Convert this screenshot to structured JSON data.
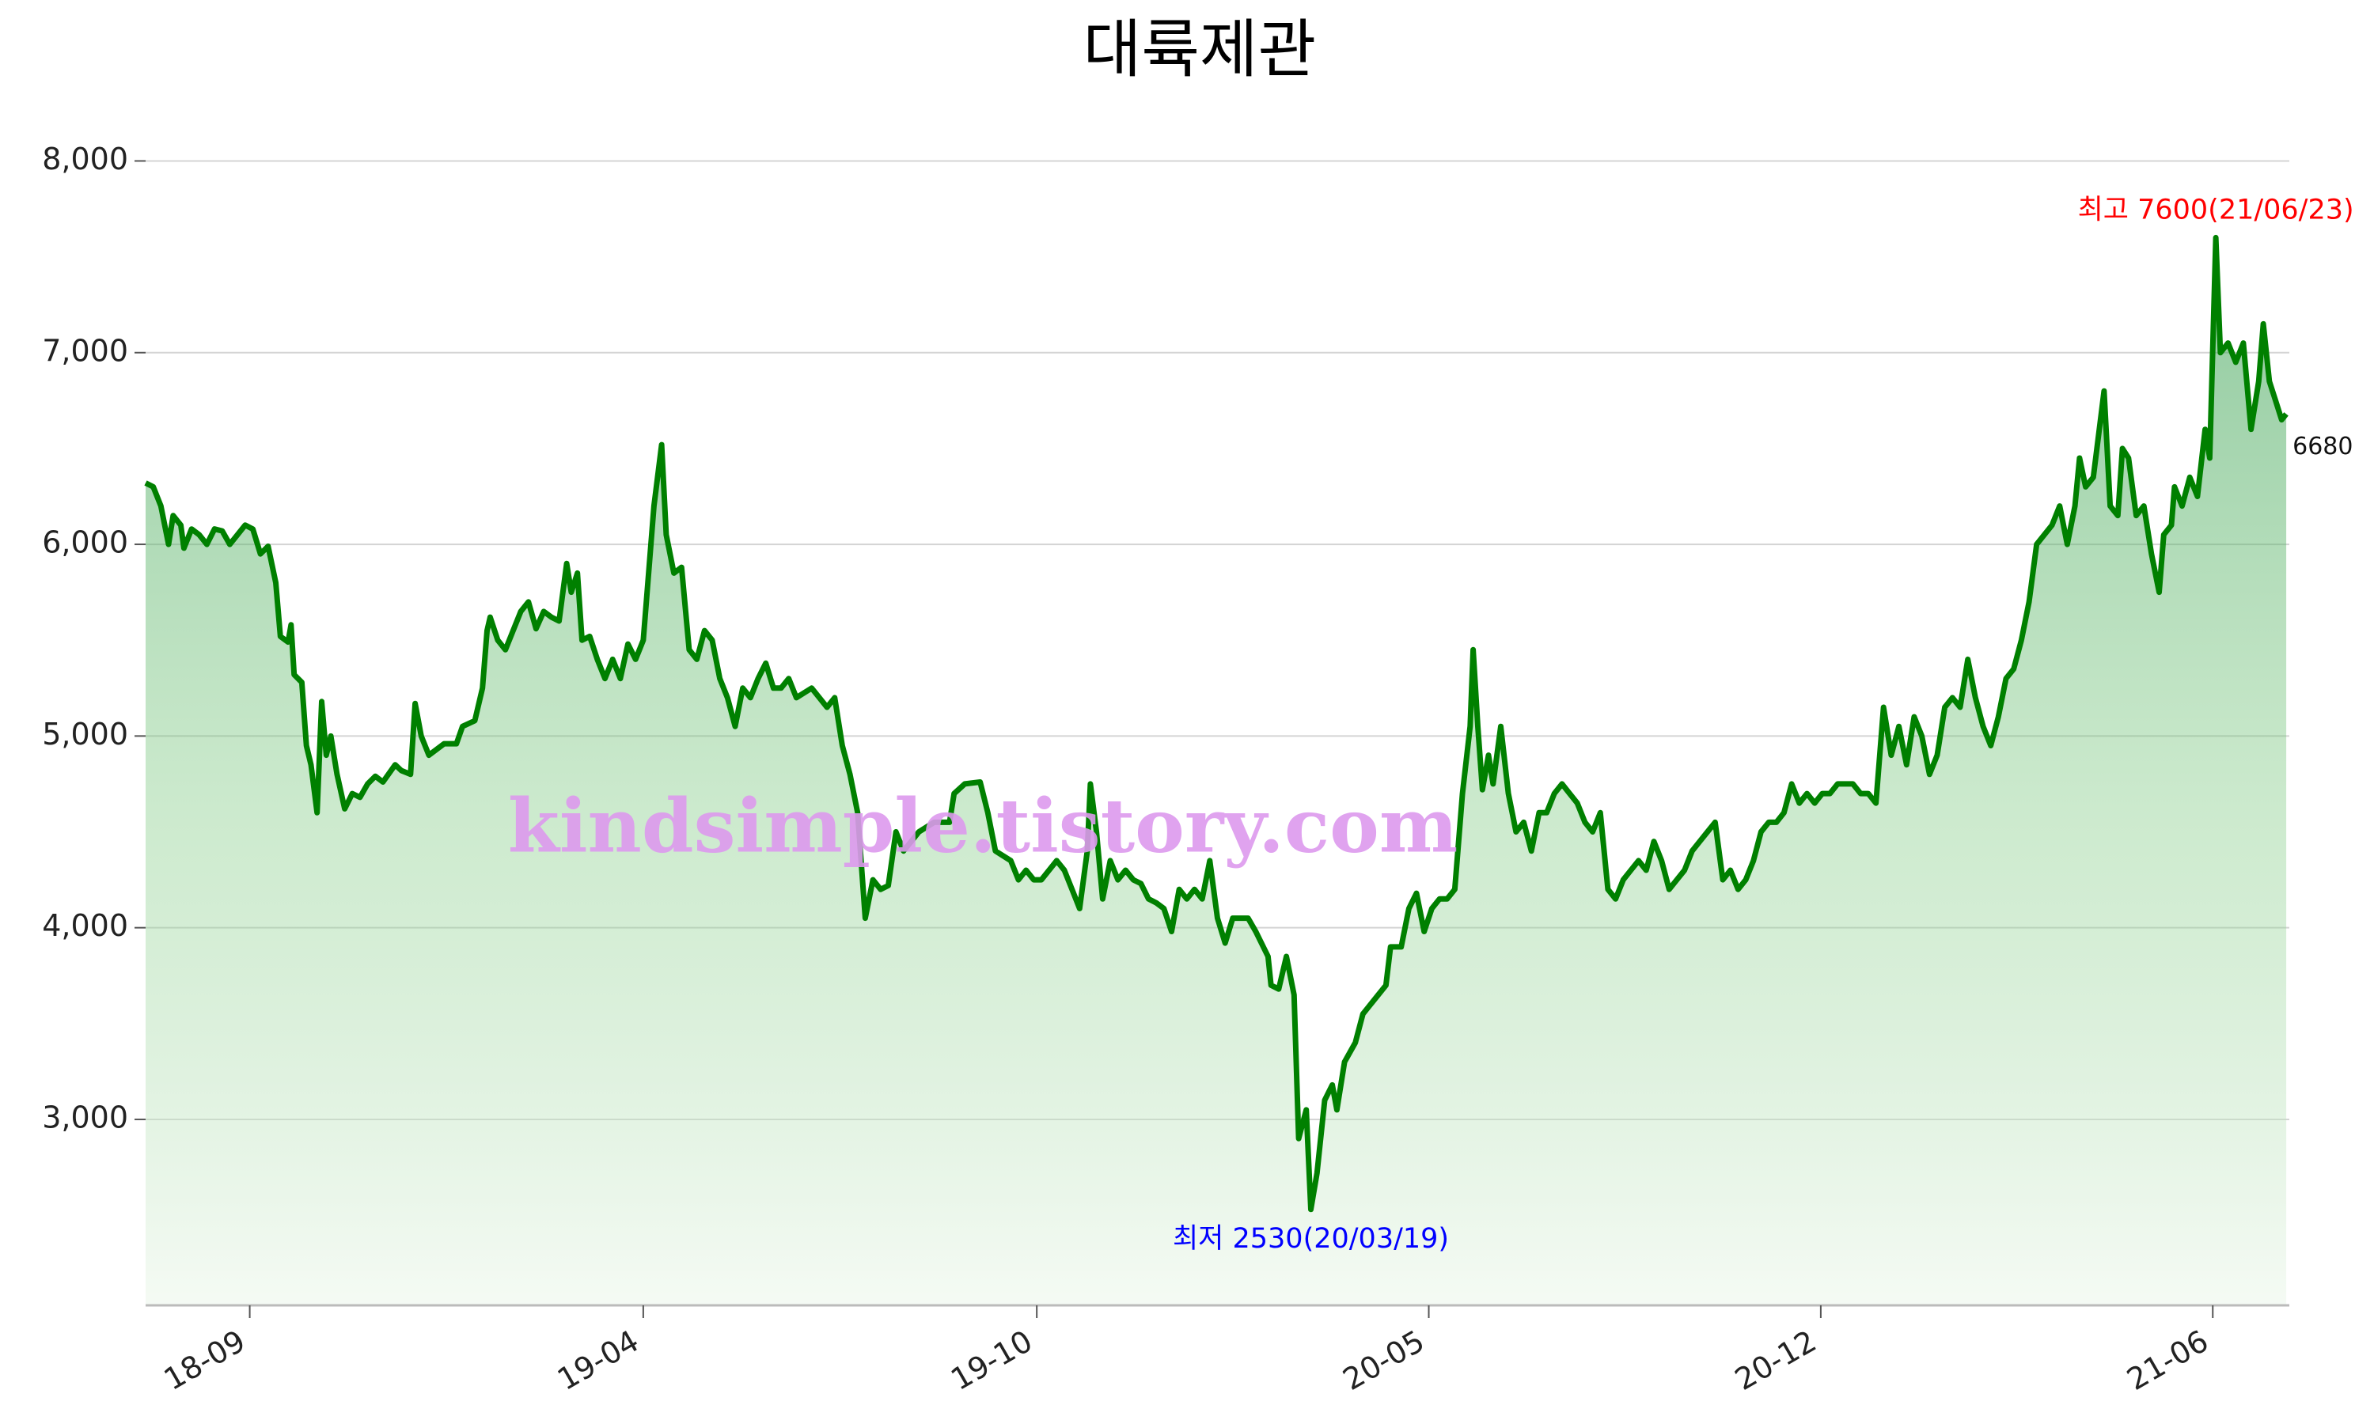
{
  "chart_data": {
    "type": "area-line",
    "title": "대륙제관",
    "watermark": "kindsimple.tistory.com",
    "xlim": [
      0,
      1400
    ],
    "xticks": [
      {
        "value": 68,
        "label": "18-09"
      },
      {
        "value": 325,
        "label": "19-04"
      },
      {
        "value": 582,
        "label": "19-10"
      },
      {
        "value": 838,
        "label": "20-05"
      },
      {
        "value": 1094,
        "label": "20-12"
      },
      {
        "value": 1350,
        "label": "21-06"
      }
    ],
    "ylim": [
      2030,
      8200
    ],
    "yticks": [
      {
        "value": 3000,
        "label": "3,000"
      },
      {
        "value": 4000,
        "label": "4,000"
      },
      {
        "value": 5000,
        "label": "5,000"
      },
      {
        "value": 6000,
        "label": "6,000"
      },
      {
        "value": 7000,
        "label": "7,000"
      },
      {
        "value": 8000,
        "label": "8,000"
      }
    ],
    "grid": true,
    "series": [
      {
        "color": "#008000",
        "x": [
          0,
          5,
          10,
          15,
          18,
          23,
          25,
          30,
          35,
          40,
          45,
          50,
          55,
          60,
          65,
          70,
          75,
          80,
          85,
          88,
          93,
          95,
          97,
          102,
          105,
          108,
          112,
          115,
          118,
          121,
          125,
          130,
          135,
          140,
          145,
          150,
          155,
          163,
          167,
          173,
          176,
          180,
          185,
          195,
          203,
          207,
          215,
          220,
          223,
          225,
          230,
          235,
          245,
          250,
          255,
          260,
          265,
          270,
          275,
          278,
          282,
          285,
          290,
          295,
          300,
          305,
          310,
          315,
          320,
          325,
          328,
          332,
          337,
          340,
          345,
          350,
          355,
          360,
          365,
          370,
          375,
          380,
          385,
          390,
          395,
          400,
          405,
          410,
          415,
          420,
          425,
          435,
          445,
          450,
          455,
          460,
          465,
          470,
          475,
          480,
          485,
          490,
          495,
          505,
          515,
          525,
          528,
          535,
          545,
          550,
          555,
          565,
          570,
          575,
          580,
          585,
          595,
          600,
          605,
          610,
          615,
          617,
          621,
          625,
          630,
          635,
          640,
          645,
          650,
          655,
          660,
          665,
          670,
          675,
          680,
          685,
          690,
          695,
          700,
          705,
          710,
          720,
          725,
          733,
          735,
          740,
          745,
          750,
          753,
          758,
          761,
          765,
          770,
          775,
          778,
          783,
          790,
          795,
          800,
          805,
          810,
          813,
          820,
          825,
          830,
          835,
          840,
          845,
          850,
          855,
          860,
          865,
          867,
          870,
          873,
          877,
          880,
          885,
          890,
          895,
          900,
          905,
          910,
          915,
          920,
          925,
          930,
          935,
          940,
          945,
          950,
          955,
          960,
          965,
          970,
          975,
          980,
          985,
          990,
          995,
          1000,
          1005,
          1010,
          1015,
          1020,
          1025,
          1030,
          1035,
          1040,
          1045,
          1050,
          1055,
          1060,
          1065,
          1070,
          1075,
          1080,
          1085,
          1090,
          1095,
          1100,
          1105,
          1110,
          1115,
          1120,
          1125,
          1130,
          1135,
          1140,
          1145,
          1150,
          1155,
          1160,
          1165,
          1170,
          1175,
          1180,
          1185,
          1190,
          1195,
          1200,
          1205,
          1210,
          1215,
          1220,
          1225,
          1230,
          1235,
          1240,
          1245,
          1250,
          1255,
          1260,
          1263,
          1267,
          1272,
          1279,
          1283,
          1288,
          1291,
          1295,
          1300,
          1305,
          1310,
          1315,
          1318,
          1323,
          1325,
          1330,
          1335,
          1340,
          1345,
          1348,
          1352,
          1355,
          1360,
          1365,
          1370,
          1375,
          1380,
          1383,
          1387,
          1391,
          1395,
          1398
        ],
        "values": [
          6320,
          6300,
          6200,
          6000,
          6150,
          6100,
          5980,
          6080,
          6050,
          6000,
          6080,
          6070,
          6000,
          6050,
          6100,
          6080,
          5950,
          5990,
          5800,
          5520,
          5490,
          5580,
          5320,
          5280,
          4950,
          4850,
          4600,
          5180,
          4900,
          5000,
          4800,
          4620,
          4700,
          4680,
          4750,
          4790,
          4760,
          4850,
          4820,
          4800,
          5170,
          5000,
          4900,
          4960,
          4960,
          5050,
          5080,
          5250,
          5550,
          5620,
          5500,
          5450,
          5650,
          5700,
          5560,
          5650,
          5620,
          5600,
          5900,
          5750,
          5850,
          5500,
          5520,
          5400,
          5300,
          5400,
          5300,
          5480,
          5400,
          5500,
          5800,
          6200,
          6520,
          6050,
          5850,
          5880,
          5450,
          5400,
          5550,
          5500,
          5300,
          5200,
          5050,
          5250,
          5200,
          5300,
          5380,
          5250,
          5250,
          5300,
          5200,
          5250,
          5150,
          5200,
          4950,
          4800,
          4600,
          4050,
          4250,
          4200,
          4220,
          4500,
          4400,
          4500,
          4550,
          4550,
          4700,
          4750,
          4760,
          4600,
          4400,
          4350,
          4250,
          4300,
          4250,
          4250,
          4350,
          4300,
          4200,
          4100,
          4400,
          4750,
          4500,
          4150,
          4350,
          4250,
          4300,
          4250,
          4230,
          4150,
          4130,
          4100,
          3980,
          4200,
          4150,
          4200,
          4150,
          4350,
          4050,
          3920,
          4050,
          4050,
          3980,
          3850,
          3700,
          3680,
          3850,
          3650,
          2900,
          3050,
          2530,
          2720,
          3100,
          3180,
          3050,
          3300,
          3400,
          3550,
          3600,
          3650,
          3700,
          3900,
          3900,
          4100,
          4180,
          3980,
          4100,
          4150,
          4150,
          4200,
          4700,
          5050,
          5450,
          5050,
          4720,
          4900,
          4750,
          5050,
          4700,
          4500,
          4550,
          4400,
          4600,
          4600,
          4700,
          4750,
          4700,
          4650,
          4550,
          4500,
          4600,
          4200,
          4150,
          4250,
          4300,
          4350,
          4300,
          4450,
          4350,
          4200,
          4250,
          4300,
          4400,
          4450,
          4500,
          4550,
          4250,
          4300,
          4200,
          4250,
          4350,
          4500,
          4550,
          4550,
          4600,
          4750,
          4650,
          4700,
          4650,
          4700,
          4700,
          4750,
          4750,
          4750,
          4700,
          4700,
          4650,
          5150,
          4900,
          5050,
          4850,
          5100,
          5000,
          4800,
          4900,
          5150,
          5200,
          5150,
          5400,
          5200,
          5050,
          4950,
          5100,
          5300,
          5350,
          5500,
          5700,
          6000,
          6050,
          6100,
          6200,
          6000,
          6200,
          6450,
          6300,
          6350,
          6800,
          6200,
          6150,
          6500,
          6450,
          6150,
          6200,
          5950,
          5750,
          6050,
          6100,
          6300,
          6200,
          6350,
          6250,
          6600,
          6450,
          7600,
          7000,
          7050,
          6950,
          7050,
          6600,
          6850,
          7150,
          6850,
          6750,
          6650,
          6680
        ]
      }
    ],
    "annotations": [
      {
        "text": "최고 7600(21/06/23)",
        "x": 1352,
        "value": 7600,
        "color": "#ff0000",
        "side": "above"
      },
      {
        "text": "최저 2530(20/03/19)",
        "x": 761,
        "value": 2530,
        "color": "#0000ff",
        "side": "below"
      }
    ],
    "last_label": {
      "x": 1398,
      "value": 6680
    }
  }
}
